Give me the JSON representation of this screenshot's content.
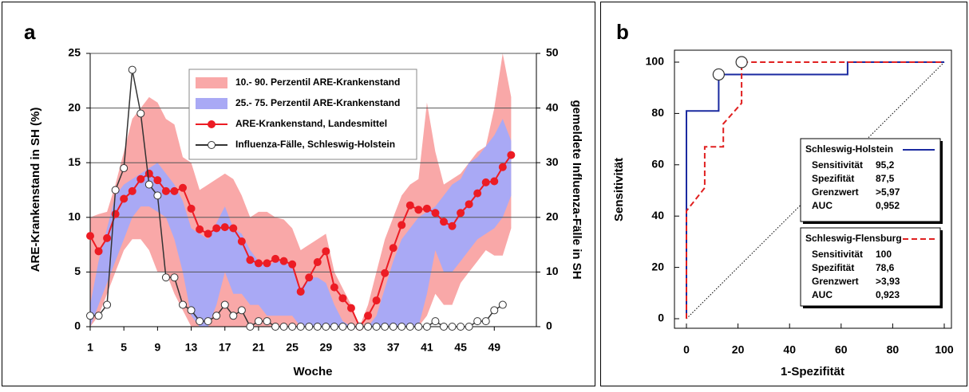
{
  "chart_data": [
    {
      "type": "line",
      "panel_label": "a",
      "xlabel": "Woche",
      "ylabel": "ARE-Krankenstand in SH (%)",
      "y2label": "gemeldete Influenza-Fälle in SH",
      "x": [
        1,
        2,
        3,
        4,
        5,
        6,
        7,
        8,
        9,
        10,
        11,
        12,
        13,
        14,
        15,
        16,
        17,
        18,
        19,
        20,
        21,
        22,
        23,
        24,
        25,
        26,
        27,
        28,
        29,
        30,
        31,
        32,
        33,
        34,
        35,
        36,
        37,
        38,
        39,
        40,
        41,
        42,
        43,
        44,
        45,
        46,
        47,
        48,
        49,
        50,
        51
      ],
      "xlim": [
        1,
        54
      ],
      "xticks": [
        1,
        5,
        9,
        13,
        17,
        21,
        25,
        29,
        33,
        37,
        41,
        45,
        49
      ],
      "ylim": [
        0,
        25
      ],
      "yticks": [
        0,
        5,
        10,
        15,
        20,
        25
      ],
      "y2lim": [
        0,
        50
      ],
      "y2ticks": [
        0,
        10,
        20,
        30,
        40,
        50
      ],
      "grid": true,
      "legend": "upper center",
      "series": [
        {
          "name": "10.- 90. Perzentil ARE-Krankenstand",
          "type": "band",
          "color": "#f9a8a8",
          "lower": [
            0,
            1,
            3,
            5,
            7,
            8,
            8,
            7,
            5,
            5,
            3,
            1.5,
            0,
            0,
            0,
            0,
            0,
            0,
            0,
            0,
            0,
            0,
            0,
            0,
            0,
            0,
            0,
            0,
            0,
            0,
            0,
            0,
            0,
            0,
            0,
            0,
            0,
            0,
            0,
            0,
            1,
            3,
            2,
            2,
            4,
            5,
            6,
            7,
            6.5,
            6.5,
            9
          ],
          "upper": [
            10,
            10.3,
            10.5,
            13,
            16,
            19,
            20,
            21,
            20.5,
            19,
            18.5,
            15.5,
            15,
            12.5,
            13,
            13.5,
            14,
            13.5,
            12,
            10,
            10.5,
            10.5,
            10,
            9.8,
            9,
            7,
            7.5,
            8,
            8.5,
            5,
            3.5,
            2,
            0,
            2,
            5,
            8,
            10,
            12,
            13,
            13.5,
            20.5,
            16,
            13,
            13.5,
            14,
            15,
            16,
            16.5,
            20,
            25,
            21
          ]
        },
        {
          "name": "25.- 75. Perzentil ARE-Krankenstand",
          "type": "band",
          "color": "#a9a9f5",
          "lower": [
            0,
            2,
            4,
            6,
            8,
            10,
            11,
            11,
            10.5,
            10,
            8,
            5,
            1,
            0,
            0,
            2,
            5,
            3,
            3,
            2,
            2,
            1,
            1,
            1,
            1,
            0,
            0,
            0,
            0,
            0,
            0,
            0,
            0,
            0,
            0,
            0,
            0,
            0,
            0,
            0,
            3,
            7,
            5,
            5,
            6,
            7,
            8,
            8.5,
            9,
            10,
            12
          ],
          "upper": [
            2,
            6,
            9,
            12,
            13,
            13.5,
            14,
            14.5,
            15,
            14,
            13,
            11.5,
            9,
            8.5,
            8,
            9.5,
            11,
            9,
            8.5,
            7,
            6,
            5.5,
            6,
            6,
            5.5,
            3.5,
            4.5,
            4.5,
            4,
            2,
            0.5,
            0,
            0,
            0,
            1,
            3.5,
            6,
            8,
            9,
            10,
            10.5,
            11,
            12,
            13,
            13.5,
            15,
            15.5,
            16.5,
            17.5,
            19,
            17
          ]
        },
        {
          "name": "ARE-Krankenstand, Landesmittel",
          "type": "line",
          "color": "#ec1c24",
          "marker": "filled",
          "values": [
            8.3,
            6.9,
            8.1,
            10.3,
            11.7,
            12.4,
            13.5,
            14.0,
            13.4,
            12.4,
            12.4,
            12.7,
            10.8,
            8.9,
            8.5,
            9.0,
            9.1,
            9.0,
            7.8,
            6.1,
            5.8,
            5.8,
            6.2,
            6.0,
            5.7,
            3.2,
            4.5,
            5.9,
            6.9,
            3.6,
            2.6,
            1.7,
            0,
            1.0,
            2.4,
            4.9,
            7.2,
            9.3,
            11.1,
            10.7,
            10.8,
            10.4,
            9.6,
            9.2,
            10.4,
            11.2,
            12.2,
            13.2,
            13.3,
            14.6,
            15.7
          ]
        },
        {
          "name": "Influenza-Fälle, Schleswig-Holstein",
          "type": "line",
          "color": "#333333",
          "marker": "open",
          "axis": "y2",
          "values": [
            2,
            2,
            4,
            25,
            29,
            47,
            39,
            26,
            24,
            9,
            9,
            4,
            3,
            1,
            1,
            2,
            4,
            2,
            3,
            0,
            1,
            1,
            0,
            0,
            0,
            0,
            0,
            0,
            0,
            0,
            0,
            0,
            0,
            0,
            0,
            0,
            0,
            0,
            0,
            0,
            0,
            1,
            0,
            0,
            0,
            0,
            1,
            1,
            3,
            4,
            null
          ]
        }
      ]
    },
    {
      "type": "roc",
      "panel_label": "b",
      "xlabel": "1-Spezifität",
      "ylabel": "Sensitivität",
      "xlim": [
        0,
        100
      ],
      "xticks": [
        0,
        20,
        40,
        60,
        80,
        100
      ],
      "ylim": [
        0,
        100
      ],
      "yticks": [
        0,
        20,
        40,
        60,
        80,
        100
      ],
      "series": [
        {
          "name": "Schleswig-Holstein",
          "color": "#1a2aa0",
          "dashed": false,
          "x": [
            0,
            0,
            12.5,
            12.5,
            62.5,
            62.5,
            100
          ],
          "y": [
            0,
            81,
            81,
            95.2,
            95.2,
            100,
            100
          ],
          "marker_point": [
            12.5,
            95.2
          ],
          "stats": [
            [
              "Sensitivität",
              "95,2"
            ],
            [
              "Spezifität",
              "87,5"
            ],
            [
              "Grenzwert",
              ">5,97"
            ],
            [
              "AUC",
              "0,952"
            ]
          ]
        },
        {
          "name": "Schleswig-Flensburg",
          "color": "#e02020",
          "dashed": true,
          "x": [
            0,
            0,
            7.1,
            7.1,
            14.3,
            14.3,
            21.4,
            21.4,
            100
          ],
          "y": [
            0,
            42,
            51,
            67,
            67,
            76,
            84,
            100,
            100
          ],
          "marker_point": [
            21.4,
            100
          ],
          "stats": [
            [
              "Sensitivität",
              "100"
            ],
            [
              "Spezifität",
              "78,6"
            ],
            [
              "Grenzwert",
              ">3,93"
            ],
            [
              "AUC",
              "0,923"
            ]
          ]
        }
      ]
    }
  ]
}
